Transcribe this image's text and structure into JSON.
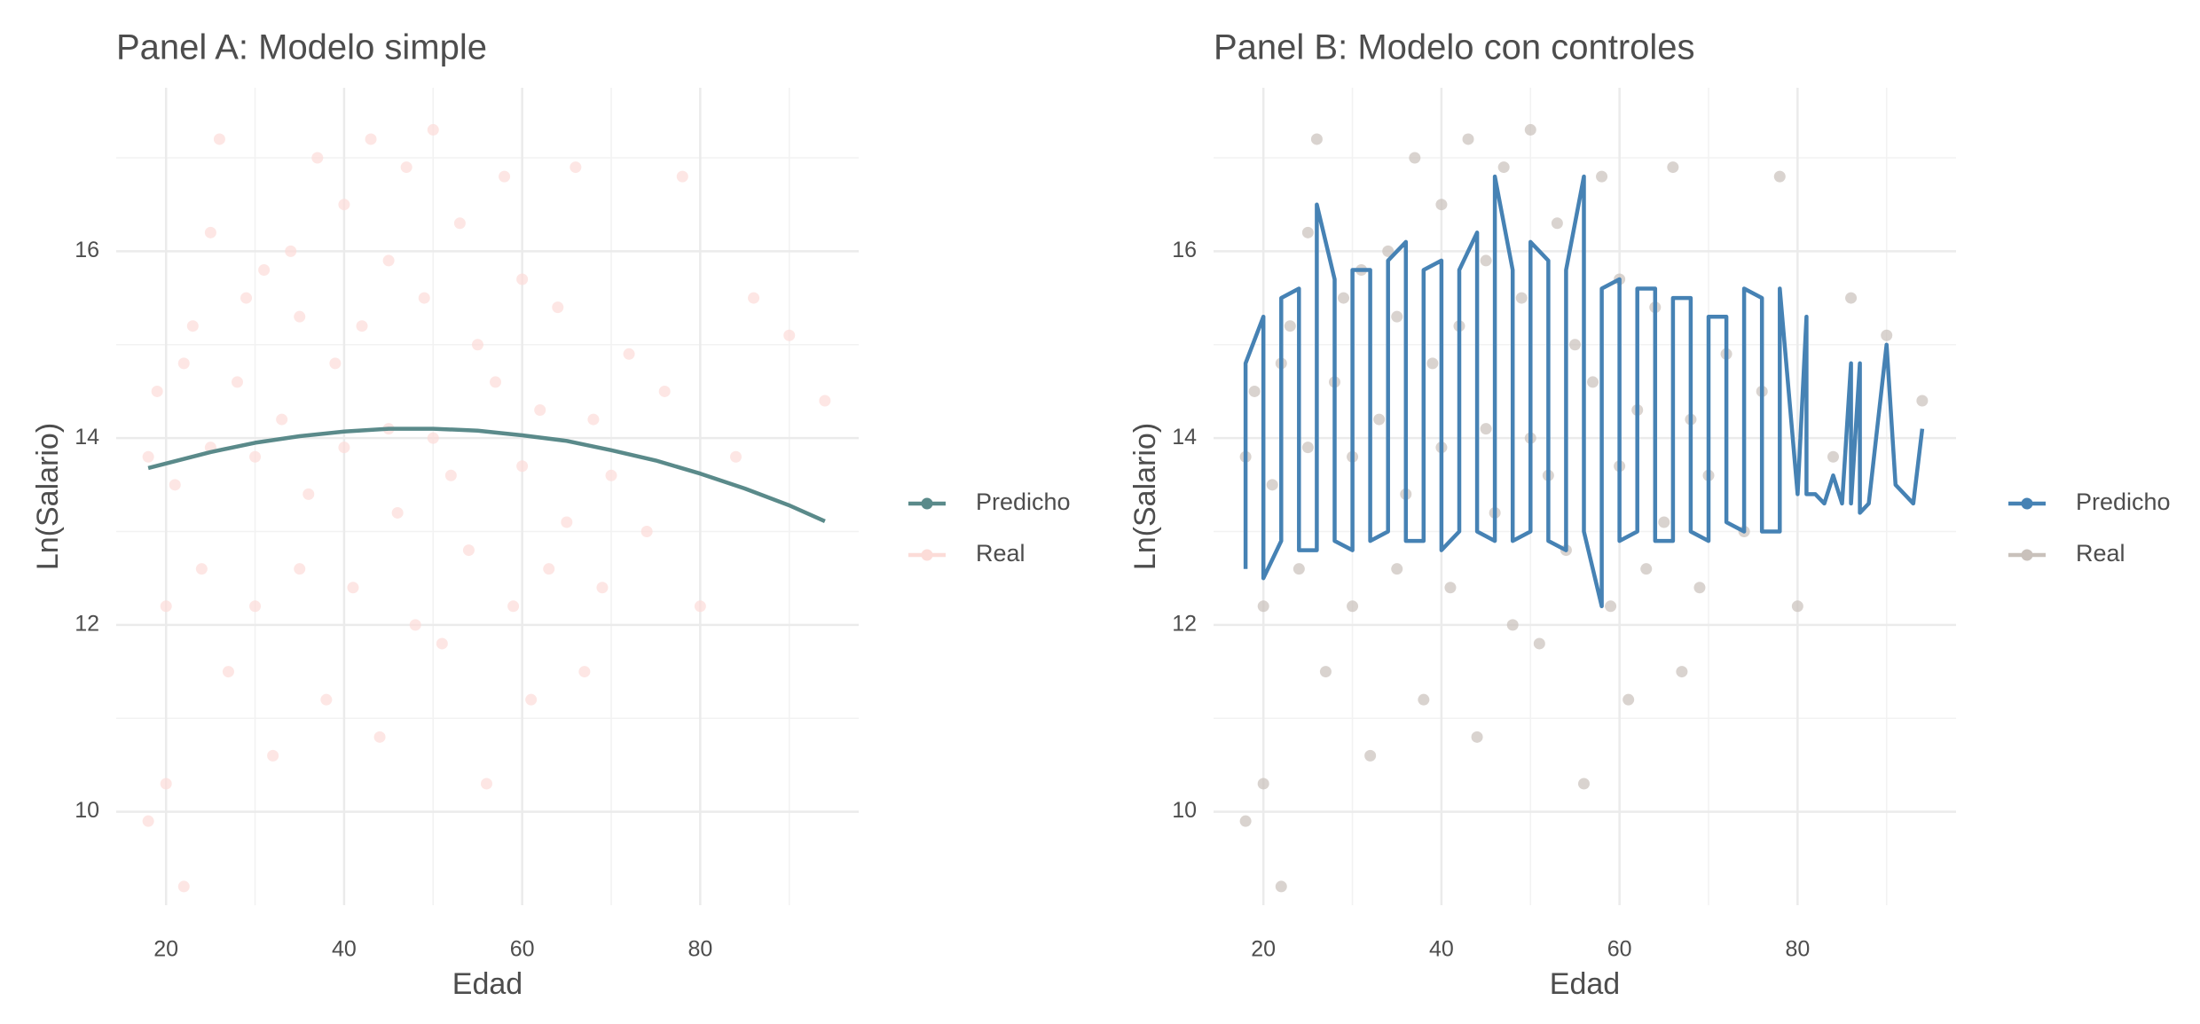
{
  "chart_data": [
    {
      "type": "scatter",
      "title": "Panel A: Modelo simple",
      "x_label": "Edad",
      "y_label": "Ln(Salario)",
      "xlim": [
        14.4,
        97.8
      ],
      "ylim": [
        9.0,
        17.75
      ],
      "xticks": [
        20,
        40,
        60,
        80
      ],
      "yticks": [
        10,
        12,
        14,
        16
      ],
      "x_minor_ticks": [
        30,
        50,
        70,
        90
      ],
      "y_minor_ticks": [
        11,
        13,
        15,
        17
      ],
      "grid": true,
      "legend": "right",
      "series": [
        {
          "name": "Predicho",
          "color": "#5a8a8a",
          "mode": "line",
          "x": [
            18,
            25,
            30,
            35,
            40,
            45,
            50,
            55,
            60,
            65,
            70,
            75,
            80,
            85,
            90,
            94
          ],
          "values": [
            13.68,
            13.85,
            13.95,
            14.02,
            14.07,
            14.1,
            14.1,
            14.08,
            14.03,
            13.97,
            13.87,
            13.76,
            13.62,
            13.46,
            13.28,
            13.11
          ]
        },
        {
          "name": "Real",
          "color": "#fcdcd8",
          "mode": "points",
          "x": [
            18,
            18,
            19,
            20,
            20,
            21,
            22,
            22,
            23,
            24,
            25,
            25,
            26,
            27,
            28,
            29,
            30,
            30,
            31,
            32,
            33,
            34,
            35,
            35,
            36,
            37,
            38,
            39,
            40,
            40,
            41,
            42,
            43,
            44,
            45,
            45,
            46,
            47,
            48,
            49,
            50,
            50,
            51,
            52,
            53,
            54,
            55,
            56,
            57,
            58,
            59,
            60,
            60,
            61,
            62,
            63,
            64,
            65,
            66,
            67,
            68,
            69,
            70,
            72,
            74,
            76,
            78,
            80,
            84,
            86,
            90,
            94
          ],
          "values": [
            9.9,
            13.8,
            14.5,
            10.3,
            12.2,
            13.5,
            9.2,
            14.8,
            15.2,
            12.6,
            13.9,
            16.2,
            17.2,
            11.5,
            14.6,
            15.5,
            12.2,
            13.8,
            15.8,
            10.6,
            14.2,
            16.0,
            12.6,
            15.3,
            13.4,
            17.0,
            11.2,
            14.8,
            13.9,
            16.5,
            12.4,
            15.2,
            17.2,
            10.8,
            14.1,
            15.9,
            13.2,
            16.9,
            12.0,
            15.5,
            14.0,
            17.3,
            11.8,
            13.6,
            16.3,
            12.8,
            15.0,
            10.3,
            14.6,
            16.8,
            12.2,
            13.7,
            15.7,
            11.2,
            14.3,
            12.6,
            15.4,
            13.1,
            16.9,
            11.5,
            14.2,
            12.4,
            13.6,
            14.9,
            13.0,
            14.5,
            16.8,
            12.2,
            13.8,
            15.5,
            15.1,
            14.4
          ]
        }
      ]
    },
    {
      "type": "scatter",
      "title": "Panel B: Modelo con controles",
      "x_label": "Edad",
      "y_label": "Ln(Salario)",
      "xlim": [
        14.4,
        97.8
      ],
      "ylim": [
        9.0,
        17.75
      ],
      "xticks": [
        20,
        40,
        60,
        80
      ],
      "yticks": [
        10,
        12,
        14,
        16
      ],
      "x_minor_ticks": [
        30,
        50,
        70,
        90
      ],
      "y_minor_ticks": [
        11,
        13,
        15,
        17
      ],
      "grid": true,
      "legend": "right",
      "series": [
        {
          "name": "Predicho",
          "color": "#4682b4",
          "mode": "line",
          "x": [
            18,
            18,
            20,
            20,
            22,
            22,
            24,
            24,
            26,
            26,
            28,
            28,
            30,
            30,
            32,
            32,
            34,
            34,
            36,
            36,
            38,
            38,
            40,
            40,
            42,
            42,
            44,
            44,
            46,
            46,
            48,
            48,
            50,
            50,
            52,
            52,
            54,
            54,
            56,
            56,
            58,
            58,
            60,
            60,
            62,
            62,
            64,
            64,
            66,
            66,
            68,
            68,
            70,
            70,
            72,
            72,
            74,
            74,
            76,
            76,
            78,
            78,
            80,
            81,
            81,
            82,
            83,
            84,
            85,
            86,
            86,
            87,
            87,
            88,
            90,
            91,
            93,
            94
          ],
          "values": [
            12.6,
            14.8,
            15.3,
            12.5,
            12.9,
            15.5,
            15.6,
            12.8,
            12.8,
            16.5,
            15.7,
            12.9,
            12.8,
            15.8,
            15.8,
            12.9,
            13.0,
            15.9,
            16.1,
            12.9,
            12.9,
            15.8,
            15.9,
            12.8,
            13.0,
            15.8,
            16.2,
            13.0,
            12.9,
            16.8,
            15.8,
            12.9,
            13.0,
            16.1,
            15.9,
            12.9,
            12.8,
            15.8,
            16.8,
            13.0,
            12.2,
            15.6,
            15.7,
            12.9,
            13.0,
            15.6,
            15.6,
            12.9,
            12.9,
            15.5,
            15.5,
            13.0,
            12.9,
            15.3,
            15.3,
            13.1,
            13.0,
            15.6,
            15.5,
            13.0,
            13.0,
            15.6,
            13.4,
            15.3,
            13.4,
            13.4,
            13.3,
            13.6,
            13.3,
            14.8,
            13.3,
            14.8,
            13.2,
            13.3,
            15.0,
            13.5,
            13.3,
            14.1
          ]
        },
        {
          "name": "Real",
          "color": "#c9c1bb",
          "mode": "points",
          "x": [
            18,
            18,
            19,
            20,
            20,
            21,
            22,
            22,
            23,
            24,
            25,
            25,
            26,
            27,
            28,
            29,
            30,
            30,
            31,
            32,
            33,
            34,
            35,
            35,
            36,
            37,
            38,
            39,
            40,
            40,
            41,
            42,
            43,
            44,
            45,
            45,
            46,
            47,
            48,
            49,
            50,
            50,
            51,
            52,
            53,
            54,
            55,
            56,
            57,
            58,
            59,
            60,
            60,
            61,
            62,
            63,
            64,
            65,
            66,
            67,
            68,
            69,
            70,
            72,
            74,
            76,
            78,
            80,
            84,
            86,
            90,
            94
          ],
          "values": [
            9.9,
            13.8,
            14.5,
            10.3,
            12.2,
            13.5,
            9.2,
            14.8,
            15.2,
            12.6,
            13.9,
            16.2,
            17.2,
            11.5,
            14.6,
            15.5,
            12.2,
            13.8,
            15.8,
            10.6,
            14.2,
            16.0,
            12.6,
            15.3,
            13.4,
            17.0,
            11.2,
            14.8,
            13.9,
            16.5,
            12.4,
            15.2,
            17.2,
            10.8,
            14.1,
            15.9,
            13.2,
            16.9,
            12.0,
            15.5,
            14.0,
            17.3,
            11.8,
            13.6,
            16.3,
            12.8,
            15.0,
            10.3,
            14.6,
            16.8,
            12.2,
            13.7,
            15.7,
            11.2,
            14.3,
            12.6,
            15.4,
            13.1,
            16.9,
            11.5,
            14.2,
            12.4,
            13.6,
            14.9,
            13.0,
            14.5,
            16.8,
            12.2,
            13.8,
            15.5,
            15.1,
            14.4
          ]
        }
      ]
    }
  ]
}
